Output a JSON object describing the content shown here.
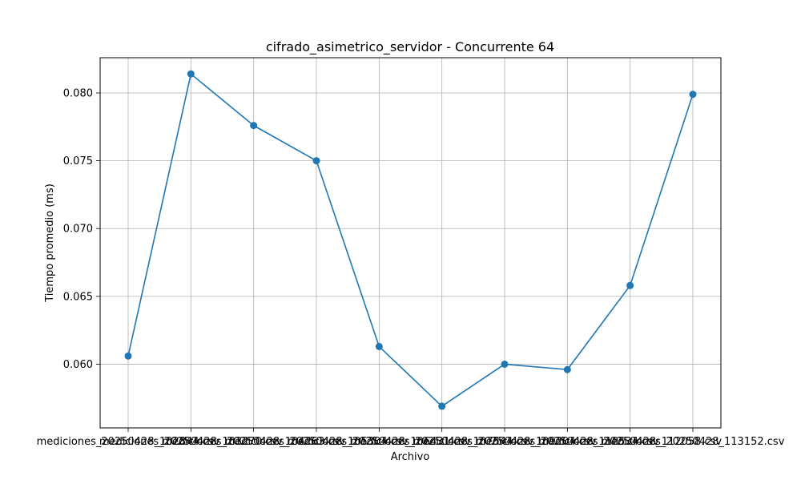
{
  "chart_data": {
    "type": "line",
    "title": "cifrado_asimetrico_servidor - Concurrente 64",
    "xlabel": "Archivo",
    "ylabel": "Tiempo promedio (ms)",
    "categories": [
      "mediciones_20250428_102844.csv",
      "mediciones_20250428_103270.csv",
      "mediciones_20250428_104263.csv",
      "mediciones_20250428_105304.csv",
      "mediciones_20250428_106431.csv",
      "mediciones_20250428_107544.csv",
      "mediciones_20250428_109204.csv",
      "mediciones_20250428_110534.csv",
      "mediciones_20250428_112058.csv",
      "mediciones_20250428_113152.csv"
    ],
    "series": [
      {
        "values": [
          0.0606,
          0.0814,
          0.0776,
          0.075,
          0.0613,
          0.0569,
          0.06,
          0.0596,
          0.0658,
          0.0799
        ]
      }
    ],
    "ylim": [
      0.0553,
      0.0826
    ],
    "yticks": [
      0.06,
      0.065,
      0.07,
      0.075,
      0.08
    ],
    "ytick_labels": [
      "0.060",
      "0.065",
      "0.070",
      "0.075",
      "0.080"
    ],
    "grid": true,
    "line_color": "#1f77b4",
    "grid_color": "#b0b0b0"
  }
}
